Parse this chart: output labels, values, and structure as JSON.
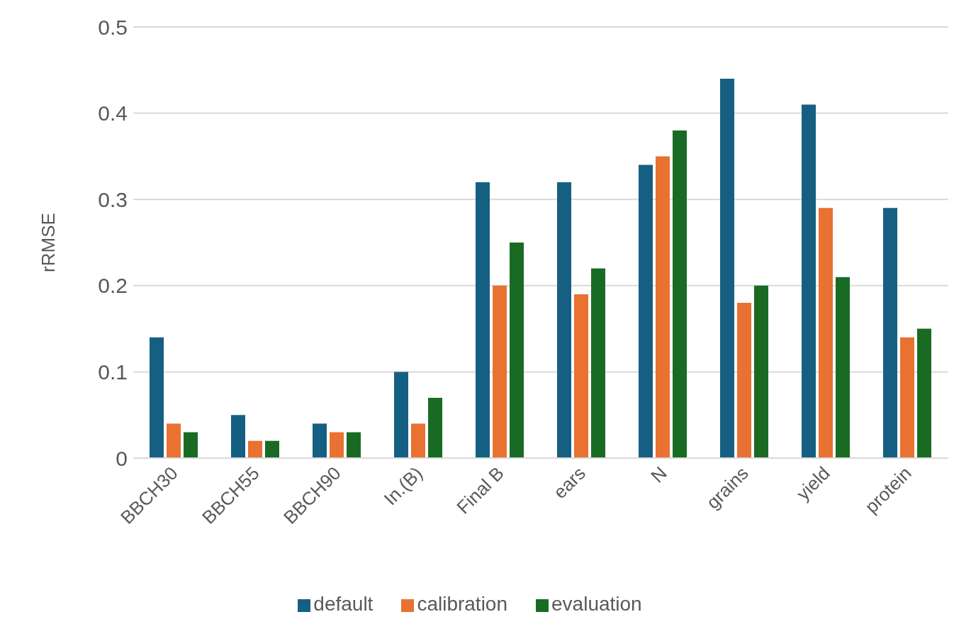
{
  "chart_data": {
    "type": "bar",
    "ylabel": "rRMSE",
    "categories": [
      "BBCH30",
      "BBCH55",
      "BBCH90",
      "In.(B)",
      "Final B",
      "ears",
      "N",
      "grains",
      "yield",
      "protein"
    ],
    "series": [
      {
        "name": "default",
        "color": "#156082",
        "values": [
          0.14,
          0.05,
          0.04,
          0.1,
          0.32,
          0.32,
          0.34,
          0.44,
          0.41,
          0.29
        ]
      },
      {
        "name": "calibration",
        "color": "#e97132",
        "values": [
          0.04,
          0.02,
          0.03,
          0.04,
          0.2,
          0.19,
          0.35,
          0.18,
          0.29,
          0.14
        ]
      },
      {
        "name": "evaluation",
        "color": "#196b24",
        "values": [
          0.03,
          0.02,
          0.03,
          0.07,
          0.25,
          0.22,
          0.38,
          0.2,
          0.21,
          0.15
        ]
      }
    ],
    "ylim": [
      0,
      0.5
    ],
    "yticks": [
      0,
      0.1,
      0.2,
      0.3,
      0.4,
      0.5
    ],
    "grid": "y",
    "legend": "bottom"
  }
}
